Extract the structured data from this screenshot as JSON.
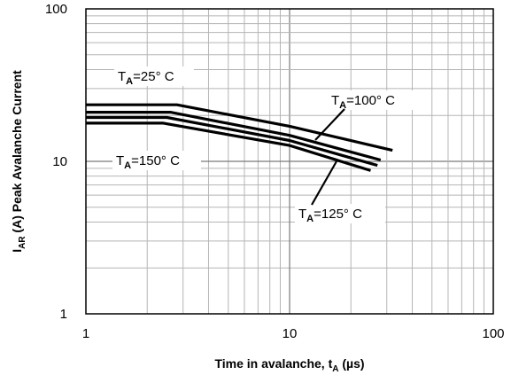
{
  "chart_data": {
    "type": "line",
    "x_scale": "log",
    "y_scale": "log",
    "xlim": [
      1,
      100
    ],
    "ylim": [
      1,
      100
    ],
    "x_ticks": [
      "1",
      "10",
      "100"
    ],
    "y_ticks": [
      "1",
      "10",
      "100"
    ],
    "grid": true,
    "xlabel": {
      "main": "Time in avalanche, t",
      "sub": "A",
      "unit": " (µs)"
    },
    "ylabel": {
      "main": "I",
      "sub": "AR",
      "rest": " (A) Peak Avalanche Current"
    },
    "series": [
      {
        "name": "T_A=25° C",
        "points": [
          [
            1,
            23.5
          ],
          [
            2.8,
            23.5
          ],
          [
            10,
            17.0
          ],
          [
            32,
            11.8
          ]
        ]
      },
      {
        "name": "T_A=100° C",
        "points": [
          [
            1,
            21.0
          ],
          [
            2.6,
            21.0
          ],
          [
            10,
            14.8
          ],
          [
            28,
            10.2
          ]
        ]
      },
      {
        "name": "T_A=125° C",
        "points": [
          [
            1,
            19.4
          ],
          [
            2.5,
            19.4
          ],
          [
            10,
            13.7
          ],
          [
            27,
            9.4
          ]
        ]
      },
      {
        "name": "T_A=150° C",
        "points": [
          [
            1,
            17.8
          ],
          [
            2.4,
            17.8
          ],
          [
            10,
            12.7
          ],
          [
            25,
            8.7
          ]
        ]
      }
    ],
    "annotations": [
      {
        "pre": "T",
        "sub": "A",
        "post": "=25°  C"
      },
      {
        "pre": "T",
        "sub": "A",
        "post": "=100°  C"
      },
      {
        "pre": "T",
        "sub": "A",
        "post": "=150°  C"
      },
      {
        "pre": "T",
        "sub": "A",
        "post": "=125°  C"
      }
    ]
  }
}
